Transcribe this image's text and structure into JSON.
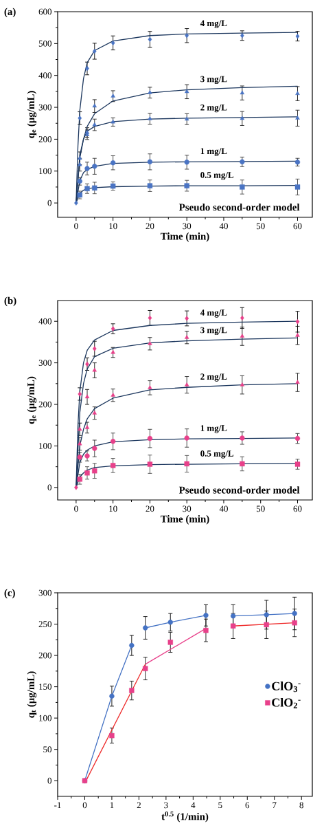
{
  "chart_data": [
    {
      "type": "scatter",
      "title": "(a)",
      "xlabel": "Time (min)",
      "ylabel": "q$_{e}$ (μg/mL)",
      "xlim": [
        -5,
        64
      ],
      "ylim": [
        -45,
        600
      ],
      "xticks": [
        0,
        10,
        20,
        30,
        40,
        50,
        60
      ],
      "yticks": [
        0,
        100,
        200,
        300,
        400,
        500,
        600
      ],
      "x": [
        0,
        1,
        3,
        5,
        10,
        20,
        30,
        45,
        60
      ],
      "series": [
        {
          "marker": "diamond",
          "color": "#4a74c4",
          "values": [
            0,
            266,
            422,
            476,
            502,
            513,
            525,
            525,
            523
          ],
          "errors": [
            null,
            20,
            20,
            25,
            22,
            25,
            22,
            15,
            15
          ]
        },
        {
          "marker": "triangle",
          "color": "#4a74c4",
          "values": [
            null,
            140,
            221,
            304,
            335,
            346,
            349,
            345,
            343
          ],
          "errors": [
            null,
            20,
            15,
            20,
            17,
            17,
            22,
            22,
            22
          ]
        },
        {
          "marker": "triangle",
          "color": "#4a74c4",
          "values": [
            null,
            120,
            214,
            245,
            254,
            264,
            263,
            265,
            266
          ],
          "errors": [
            null,
            20,
            15,
            18,
            13,
            17,
            17,
            22,
            25
          ]
        },
        {
          "marker": "circle",
          "color": "#4a74c4",
          "values": [
            null,
            68,
            108,
            115,
            126,
            129,
            128,
            129,
            128
          ],
          "errors": [
            null,
            12,
            20,
            25,
            22,
            25,
            22,
            15,
            12
          ]
        },
        {
          "marker": "square",
          "color": "#4a74c4",
          "values": [
            null,
            25,
            45,
            47,
            53,
            54,
            54,
            50,
            50
          ],
          "errors": [
            null,
            12,
            15,
            18,
            13,
            18,
            17,
            22,
            25
          ]
        },
        {
          "type": "line",
          "name": "4 mg/L",
          "color": "#1b365d",
          "x": [
            0,
            0.5,
            1,
            2,
            3,
            5,
            10,
            20,
            30,
            45,
            60
          ],
          "values": [
            0,
            180,
            290,
            390,
            440,
            478,
            508,
            525,
            530,
            533,
            535
          ]
        },
        {
          "type": "line",
          "name": "3 mg/L",
          "color": "#1b365d",
          "x": [
            0,
            1,
            2,
            3,
            5,
            10,
            20,
            30,
            45,
            60
          ],
          "values": [
            0,
            140,
            200,
            240,
            280,
            320,
            345,
            355,
            362,
            366
          ]
        },
        {
          "type": "line",
          "name": "2 mg/L",
          "color": "#1b365d",
          "x": [
            0,
            1,
            2,
            3,
            5,
            10,
            20,
            30,
            45,
            60
          ],
          "values": [
            0,
            150,
            200,
            225,
            240,
            255,
            263,
            266,
            268,
            270
          ]
        },
        {
          "type": "line",
          "name": "1 mg/L",
          "color": "#1b365d",
          "x": [
            0,
            1,
            2,
            3,
            5,
            10,
            20,
            30,
            45,
            60
          ],
          "values": [
            0,
            70,
            95,
            105,
            115,
            124,
            128,
            129,
            130,
            131
          ]
        },
        {
          "type": "line",
          "name": "0.5 mg/L",
          "color": "#1b365d",
          "x": [
            0,
            1,
            2,
            3,
            5,
            10,
            20,
            30,
            45,
            60
          ],
          "values": [
            0,
            30,
            40,
            45,
            48,
            51,
            53,
            54,
            54,
            55
          ]
        }
      ],
      "annotations": [
        "Pseudo second-order model"
      ]
    },
    {
      "type": "scatter",
      "title": "(b)",
      "xlabel": "Time (min)",
      "ylabel": "q$_{e}$ (μg/mL)",
      "xlim": [
        -5,
        64
      ],
      "ylim": [
        -30,
        450
      ],
      "xticks": [
        0,
        10,
        20,
        30,
        40,
        50,
        60
      ],
      "yticks": [
        0,
        100,
        200,
        300,
        400
      ],
      "x": [
        0,
        1,
        3,
        5,
        10,
        20,
        30,
        45,
        60
      ],
      "series": [
        {
          "marker": "diamond",
          "color": "#e8408a",
          "values": [
            0,
            225,
            297,
            334,
            382,
            408,
            407,
            408,
            399
          ],
          "errors": [
            null,
            15,
            15,
            18,
            12,
            18,
            18,
            25,
            25
          ]
        },
        {
          "marker": "triangle",
          "color": "#e8408a",
          "values": [
            null,
            140,
            218,
            282,
            325,
            346,
            361,
            364,
            366
          ],
          "errors": [
            null,
            15,
            18,
            18,
            12,
            15,
            15,
            22,
            22
          ]
        },
        {
          "marker": "triangle",
          "color": "#e8408a",
          "values": [
            null,
            105,
            144,
            179,
            222,
            240,
            247,
            247,
            253
          ],
          "errors": [
            null,
            15,
            13,
            15,
            15,
            17,
            20,
            22,
            22
          ]
        },
        {
          "marker": "circle",
          "color": "#e8408a",
          "values": [
            null,
            73,
            76,
            94,
            111,
            118,
            119,
            119,
            118
          ],
          "errors": [
            null,
            12,
            12,
            20,
            20,
            22,
            22,
            15,
            12
          ]
        },
        {
          "marker": "square",
          "color": "#e8408a",
          "values": [
            null,
            20,
            35,
            40,
            53,
            56,
            57,
            57,
            56
          ],
          "errors": [
            null,
            12,
            15,
            18,
            17,
            22,
            20,
            17,
            12
          ]
        },
        {
          "type": "line",
          "name": "4 mg/L",
          "color": "#1b365d",
          "x": [
            0,
            0.5,
            1,
            2,
            3,
            5,
            10,
            20,
            30,
            45,
            60
          ],
          "values": [
            0,
            150,
            230,
            300,
            330,
            355,
            378,
            390,
            395,
            398,
            400
          ]
        },
        {
          "type": "line",
          "name": "3 mg/L",
          "color": "#1b365d",
          "x": [
            0,
            1,
            2,
            3,
            5,
            10,
            20,
            30,
            45,
            60
          ],
          "values": [
            0,
            180,
            250,
            285,
            315,
            335,
            348,
            353,
            357,
            360
          ]
        },
        {
          "type": "line",
          "name": "2 mg/L",
          "color": "#1b365d",
          "x": [
            0,
            1,
            2,
            3,
            5,
            10,
            20,
            30,
            45,
            60
          ],
          "values": [
            0,
            100,
            140,
            165,
            190,
            215,
            235,
            241,
            247,
            250
          ]
        },
        {
          "type": "line",
          "name": "1 mg/L",
          "color": "#1b365d",
          "x": [
            0,
            1,
            2,
            3,
            5,
            10,
            20,
            30,
            45,
            60
          ],
          "values": [
            0,
            60,
            80,
            90,
            100,
            110,
            115,
            117,
            118,
            119
          ]
        },
        {
          "type": "line",
          "name": "0.5 mg/L",
          "color": "#1b365d",
          "x": [
            0,
            1,
            2,
            3,
            5,
            10,
            20,
            30,
            45,
            60
          ],
          "values": [
            0,
            25,
            35,
            42,
            48,
            52,
            55,
            56,
            57,
            58
          ]
        }
      ],
      "annotations": [
        "Pseudo second-order model"
      ]
    },
    {
      "type": "scatter",
      "title": "(c)",
      "xlabel": "t$^{0.5}$ (1/min)",
      "ylabel": "q$_{t}$ (μg/mL)",
      "xlim": [
        -1,
        8.4
      ],
      "ylim": [
        -25,
        300
      ],
      "xticks": [
        -1,
        0,
        1,
        2,
        3,
        4,
        5,
        6,
        7,
        8
      ],
      "yticks": [
        0,
        50,
        100,
        150,
        200,
        250,
        300
      ],
      "legend": "right",
      "x": [
        0,
        1,
        1.732,
        2.236,
        3.162,
        4.472,
        5.477,
        6.708,
        7.746
      ],
      "series": [
        {
          "name": "ClO$_{3}$$^{-}$",
          "marker": "circle",
          "color": "#4472c4",
          "values": [
            0,
            135,
            216,
            244,
            253,
            264,
            263,
            265,
            267
          ],
          "errors": [
            null,
            16,
            16,
            18,
            14,
            17,
            18,
            23,
            26
          ]
        },
        {
          "name": "ClO$_{2}$$^{-}$",
          "marker": "square",
          "color": "#e8408a",
          "values": [
            0,
            72,
            144,
            179,
            221,
            240,
            247,
            249,
            252
          ],
          "errors": [
            null,
            12,
            15,
            18,
            16,
            18,
            20,
            22,
            22
          ]
        },
        {
          "type": "line",
          "color": "#4472c4",
          "x": [
            0,
            1,
            1.732
          ],
          "values": [
            0,
            135,
            216
          ]
        },
        {
          "type": "line",
          "color": "#4472c4",
          "x": [
            2.236,
            3.162,
            4.472
          ],
          "values": [
            244,
            253,
            264
          ]
        },
        {
          "type": "line",
          "color": "#4472c4",
          "x": [
            5.477,
            6.708,
            7.746
          ],
          "values": [
            263,
            265,
            267
          ]
        },
        {
          "type": "line",
          "color": "#ee2a2a",
          "x": [
            0,
            2.236
          ],
          "values": [
            -4,
            186
          ]
        },
        {
          "type": "line",
          "color": "#e8408a",
          "x": [
            2.236,
            4.472
          ],
          "values": [
            186,
            243
          ]
        },
        {
          "type": "line",
          "color": "#ee2a2a",
          "x": [
            5.477,
            7.746
          ],
          "values": [
            247,
            252
          ]
        }
      ]
    }
  ]
}
